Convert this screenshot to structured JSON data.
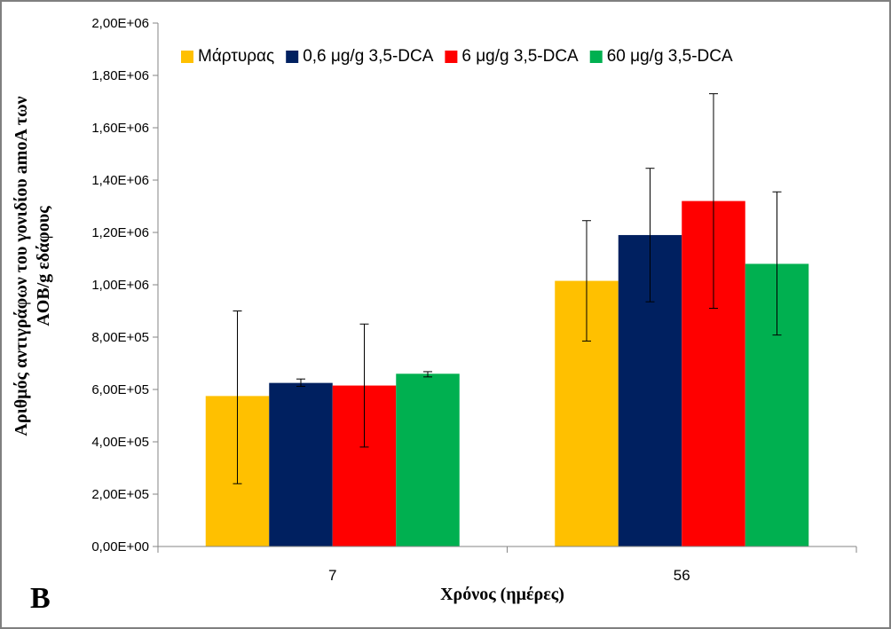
{
  "panel_label": "B",
  "chart_data": {
    "type": "bar",
    "title": "",
    "xlabel": "Χρόνος (ημέρες)",
    "ylabel_lines": [
      "Αριθμός αντιγράφων του γονιδίου amoA των",
      "AOB/g εδάφους"
    ],
    "categories": [
      "7",
      "56"
    ],
    "ylim": [
      0,
      2000000
    ],
    "ytick_values": [
      0,
      200000,
      400000,
      600000,
      800000,
      1000000,
      1200000,
      1400000,
      1600000,
      1800000,
      2000000
    ],
    "ytick_labels": [
      "0,00E+00",
      "2,00E+05",
      "4,00E+05",
      "6,00E+05",
      "8,00E+05",
      "1,00E+06",
      "1,20E+06",
      "1,40E+06",
      "1,60E+06",
      "1,80E+06",
      "2,00E+06"
    ],
    "legend_position": "top",
    "series": [
      {
        "name": "Μάρτυρας",
        "color": "#FFC000",
        "values": [
          575000,
          1015000
        ],
        "err_low": [
          240000,
          785000
        ],
        "err_high": [
          900000,
          1245000
        ]
      },
      {
        "name": "0,6 μg/g 3,5-DCA",
        "color": "#002060",
        "values": [
          625000,
          1190000
        ],
        "err_low": [
          612000,
          935000
        ],
        "err_high": [
          640000,
          1445000
        ]
      },
      {
        "name": "6 μg/g 3,5-DCA",
        "color": "#FF0000",
        "values": [
          615000,
          1320000
        ],
        "err_low": [
          380000,
          910000
        ],
        "err_high": [
          850000,
          1730000
        ]
      },
      {
        "name": "60 μg/g 3,5-DCA",
        "color": "#00B050",
        "values": [
          660000,
          1080000
        ],
        "err_low": [
          648000,
          808000
        ],
        "err_high": [
          668000,
          1355000
        ]
      }
    ]
  }
}
